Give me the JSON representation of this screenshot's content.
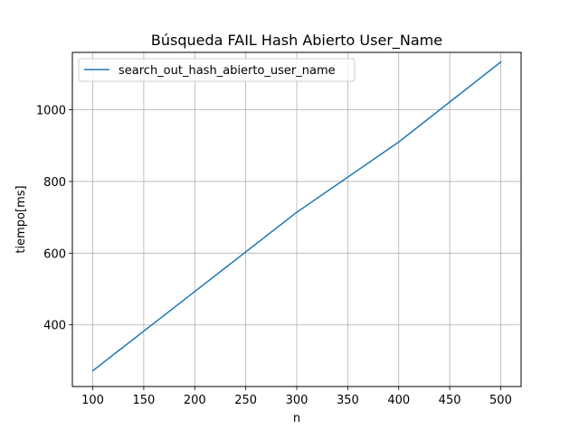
{
  "chart_data": {
    "type": "line",
    "title": "Búsqueda FAIL Hash Abierto User_Name",
    "xlabel": "n",
    "ylabel": "tiempo[ms]",
    "xlim": [
      80,
      520
    ],
    "ylim": [
      228,
      1160
    ],
    "x_ticks": [
      "100",
      "150",
      "200",
      "250",
      "300",
      "350",
      "400",
      "450",
      "500"
    ],
    "y_ticks": [
      "400",
      "600",
      "800",
      "1000"
    ],
    "grid": true,
    "legend_position": "upper-left",
    "series": [
      {
        "name": "search_out_hash_abierto_user_name",
        "color": "#1f77b4",
        "x": [
          100,
          200,
          300,
          400,
          500
        ],
        "y": [
          272,
          493,
          714,
          910,
          1133
        ]
      }
    ]
  }
}
